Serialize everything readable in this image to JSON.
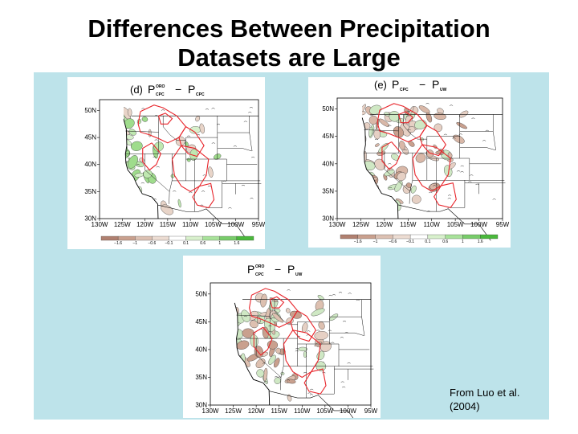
{
  "slide": {
    "title_line1": "Differences Between Precipitation",
    "title_line2": "Datasets are Large",
    "credit_line1": "From Luo et al.",
    "credit_line2": "(2004)"
  },
  "panels": [
    {
      "id": "d",
      "label": "(d)",
      "lhs_main": "P",
      "lhs_sup": "ORO",
      "lhs_sub": "CPC",
      "minus": "−",
      "rhs_main": "P",
      "rhs_sub": "CPC",
      "theme": "green"
    },
    {
      "id": "e",
      "label": "(e)",
      "lhs_main": "P",
      "lhs_sup": "",
      "lhs_sub": "CPC",
      "minus": "−",
      "rhs_main": "P",
      "rhs_sub": "UW",
      "theme": "brown"
    },
    {
      "id": "f",
      "label": "",
      "lhs_main": "P",
      "lhs_sup": "ORO",
      "lhs_sub": "CPC",
      "minus": "−",
      "rhs_main": "P",
      "rhs_sub": "UW",
      "theme": "mixed"
    }
  ],
  "axes": {
    "lat_labels": [
      "50N",
      "45N",
      "40N",
      "35N",
      "30N"
    ],
    "lon_labels": [
      "130W",
      "125W",
      "120W",
      "115W",
      "110W",
      "105W",
      "100W",
      "95W"
    ]
  },
  "colorbar": {
    "labels": [
      "−1.6",
      "−1",
      "−0.6",
      "−0.1",
      "0.1",
      "0.6",
      "1",
      "1.6"
    ],
    "colors": [
      "#b08070",
      "#c9a08e",
      "#dcc0b2",
      "#ecdcd2",
      "#ffffff",
      "#d8f0cc",
      "#a8e29a",
      "#78cc6a",
      "#4ab83c"
    ]
  }
}
